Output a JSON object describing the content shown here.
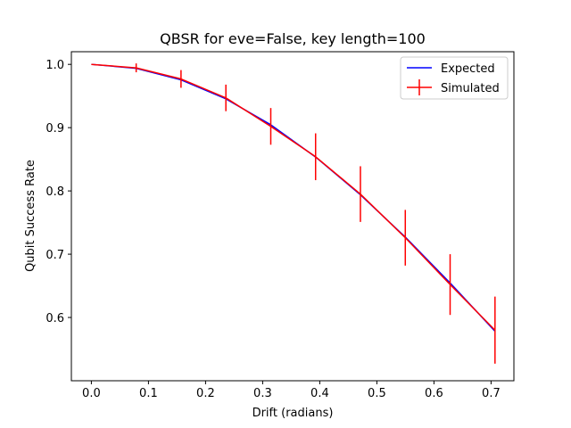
{
  "chart_data": {
    "type": "line",
    "title": "QBSR for eve=False, key length=100",
    "xlabel": "Drift (radians)",
    "ylabel": "Qubit Success Rate",
    "xlim": [
      -0.035,
      0.74
    ],
    "ylim": [
      0.5,
      1.02
    ],
    "xticks": [
      0.0,
      0.1,
      0.2,
      0.3,
      0.4,
      0.5,
      0.6,
      0.7
    ],
    "xtick_labels": [
      "0.0",
      "0.1",
      "0.2",
      "0.3",
      "0.4",
      "0.5",
      "0.6",
      "0.7"
    ],
    "yticks": [
      0.6,
      0.7,
      0.8,
      0.9,
      1.0
    ],
    "ytick_labels": [
      "0.6",
      "0.7",
      "0.8",
      "0.9",
      "1.0"
    ],
    "grid": false,
    "legend_position": "top-right",
    "series": [
      {
        "name": "Expected",
        "style": "line",
        "color": "#0000ff",
        "x": [
          0.0,
          0.0785,
          0.157,
          0.2356,
          0.3142,
          0.3927,
          0.4712,
          0.5498,
          0.6283,
          0.7069
        ],
        "y": [
          1.0,
          0.9938,
          0.9755,
          0.9455,
          0.9045,
          0.8536,
          0.7939,
          0.727,
          0.6545,
          0.5782
        ]
      },
      {
        "name": "Simulated",
        "style": "errorbar",
        "color": "#ff0000",
        "x": [
          0.0,
          0.0785,
          0.157,
          0.2356,
          0.3142,
          0.3927,
          0.4712,
          0.5498,
          0.6283,
          0.7069
        ],
        "y": [
          1.0,
          0.9945,
          0.977,
          0.947,
          0.902,
          0.854,
          0.795,
          0.726,
          0.652,
          0.58
        ],
        "yerr": [
          0.0,
          0.007,
          0.014,
          0.021,
          0.029,
          0.037,
          0.044,
          0.044,
          0.048,
          0.053
        ]
      }
    ]
  }
}
